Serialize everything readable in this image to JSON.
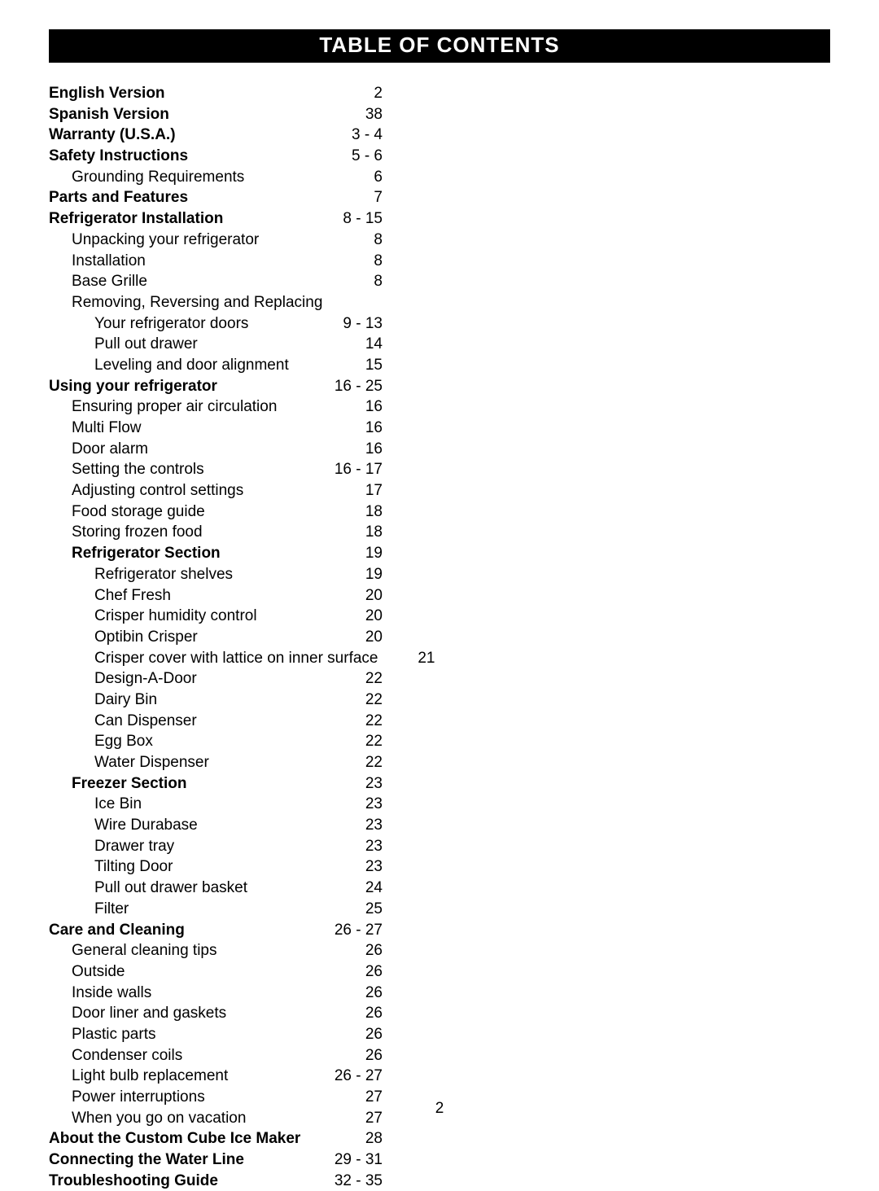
{
  "header": "TABLE OF CONTENTS",
  "pageNumber": "2",
  "entries": [
    {
      "label": "English Version",
      "page": "2",
      "indent": 0,
      "bold": true
    },
    {
      "label": "Spanish Version",
      "page": "38",
      "indent": 0,
      "bold": true
    },
    {
      "label": "Warranty (U.S.A.)",
      "page": "3 - 4",
      "indent": 0,
      "bold": true
    },
    {
      "label": "Safety Instructions",
      "page": "5 - 6",
      "indent": 0,
      "bold": true
    },
    {
      "label": "Grounding Requirements",
      "page": "6",
      "indent": 1,
      "bold": false
    },
    {
      "label": "Parts and Features",
      "page": "7",
      "indent": 0,
      "bold": true
    },
    {
      "label": "Refrigerator Installation",
      "page": "8 - 15",
      "indent": 0,
      "bold": true
    },
    {
      "label": "Unpacking your refrigerator",
      "page": "8",
      "indent": 1,
      "bold": false
    },
    {
      "label": "Installation",
      "page": "8",
      "indent": 1,
      "bold": false
    },
    {
      "label": "Base Grille",
      "page": "8",
      "indent": 1,
      "bold": false
    },
    {
      "label": "Removing, Reversing and Replacing",
      "page": "",
      "indent": 1,
      "bold": false
    },
    {
      "label": "Your refrigerator doors",
      "page": "9 - 13",
      "indent": 2,
      "bold": false
    },
    {
      "label": "Pull out drawer",
      "page": "14",
      "indent": 2,
      "bold": false
    },
    {
      "label": "Leveling and door alignment",
      "page": "15",
      "indent": 2,
      "bold": false
    },
    {
      "label": "Using your refrigerator",
      "page": "16 - 25",
      "indent": 0,
      "bold": true
    },
    {
      "label": "Ensuring proper air circulation",
      "page": "16",
      "indent": 1,
      "bold": false
    },
    {
      "label": "Multi Flow",
      "page": "16",
      "indent": 1,
      "bold": false
    },
    {
      "label": "Door alarm",
      "page": "16",
      "indent": 1,
      "bold": false
    },
    {
      "label": "Setting the controls",
      "page": "16 - 17",
      "indent": 1,
      "bold": false
    },
    {
      "label": "Adjusting control settings",
      "page": "17",
      "indent": 1,
      "bold": false
    },
    {
      "label": "Food storage guide",
      "page": "18",
      "indent": 1,
      "bold": false
    },
    {
      "label": "Storing frozen food",
      "page": "18",
      "indent": 1,
      "bold": false
    },
    {
      "label": "Refrigerator Section",
      "page": "19",
      "indent": 1,
      "bold": true
    },
    {
      "label": "Refrigerator shelves",
      "page": "19",
      "indent": 2,
      "bold": false
    },
    {
      "label": "Chef Fresh",
      "page": "20",
      "indent": 2,
      "bold": false
    },
    {
      "label": "Crisper humidity control",
      "page": "20",
      "indent": 2,
      "bold": false
    },
    {
      "label": "Optibin Crisper",
      "page": "20",
      "indent": 2,
      "bold": false
    },
    {
      "label": "Crisper cover with lattice on inner surface",
      "page": "21",
      "indent": 2,
      "bold": false
    },
    {
      "label": "Design-A-Door",
      "page": "22",
      "indent": 2,
      "bold": false
    },
    {
      "label": "Dairy Bin",
      "page": "22",
      "indent": 2,
      "bold": false
    },
    {
      "label": "Can Dispenser",
      "page": "22",
      "indent": 2,
      "bold": false
    },
    {
      "label": "Egg Box",
      "page": "22",
      "indent": 2,
      "bold": false
    },
    {
      "label": "Water Dispenser",
      "page": "22",
      "indent": 2,
      "bold": false
    },
    {
      "label": "Freezer Section",
      "page": "23",
      "indent": 1,
      "bold": true
    },
    {
      "label": "Ice Bin",
      "page": "23",
      "indent": 2,
      "bold": false
    },
    {
      "label": "Wire Durabase",
      "page": "23",
      "indent": 2,
      "bold": false
    },
    {
      "label": "Drawer tray",
      "page": "23",
      "indent": 2,
      "bold": false
    },
    {
      "label": "Tilting Door",
      "page": "23",
      "indent": 2,
      "bold": false
    },
    {
      "label": "Pull out drawer basket",
      "page": "24",
      "indent": 2,
      "bold": false
    },
    {
      "label": "Filter",
      "page": "25",
      "indent": 2,
      "bold": false
    },
    {
      "label": "Care and Cleaning",
      "page": "26 - 27",
      "indent": 0,
      "bold": true
    },
    {
      "label": "General cleaning tips",
      "page": "26",
      "indent": 1,
      "bold": false
    },
    {
      "label": "Outside",
      "page": "26",
      "indent": 1,
      "bold": false
    },
    {
      "label": "Inside walls",
      "page": "26",
      "indent": 1,
      "bold": false
    },
    {
      "label": "Door liner and gaskets",
      "page": "26",
      "indent": 1,
      "bold": false
    },
    {
      "label": "Plastic parts",
      "page": "26",
      "indent": 1,
      "bold": false
    },
    {
      "label": "Condenser coils",
      "page": "26",
      "indent": 1,
      "bold": false
    },
    {
      "label": "Light bulb replacement",
      "page": "26 - 27",
      "indent": 1,
      "bold": false
    },
    {
      "label": "Power interruptions",
      "page": "27",
      "indent": 1,
      "bold": false
    },
    {
      "label": "When you go on vacation",
      "page": "27",
      "indent": 1,
      "bold": false
    },
    {
      "label": "About the Custom Cube Ice Maker",
      "page": "28",
      "indent": 0,
      "bold": true
    },
    {
      "label": "Connecting the Water Line",
      "page": "29 - 31",
      "indent": 0,
      "bold": true
    },
    {
      "label": "Troubleshooting Guide",
      "page": "32 - 35",
      "indent": 0,
      "bold": true
    }
  ]
}
